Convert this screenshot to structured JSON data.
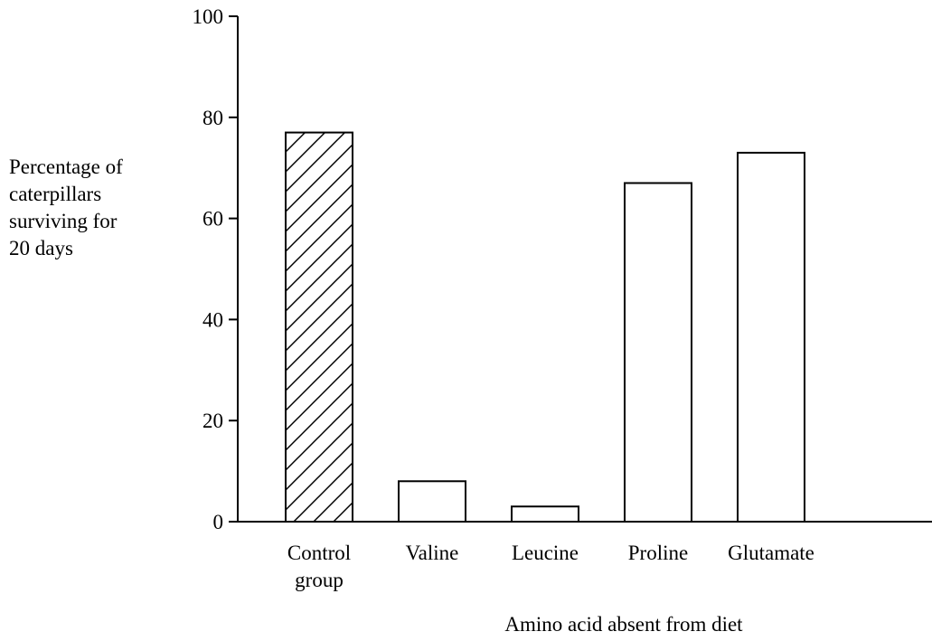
{
  "chart_data": {
    "type": "bar",
    "categories": [
      [
        "Control",
        "group"
      ],
      [
        "Valine"
      ],
      [
        "Leucine"
      ],
      [
        "Proline"
      ],
      [
        "Glutamate"
      ]
    ],
    "values": [
      77,
      8,
      3,
      67,
      73
    ],
    "fills": [
      "hatched",
      "plain",
      "plain",
      "plain",
      "plain"
    ],
    "ylabel_lines": [
      "Percentage of",
      "caterpillars",
      "surviving for",
      "20 days"
    ],
    "xlabel": "Amino acid absent from diet",
    "ylim": [
      0,
      100
    ],
    "yticks": [
      0,
      20,
      40,
      60,
      80,
      100
    ],
    "grid": false,
    "colors": {
      "axis": "#000000",
      "bar_fill": "#ffffff",
      "bar_stroke": "#000000",
      "hatch": "#000000"
    }
  }
}
